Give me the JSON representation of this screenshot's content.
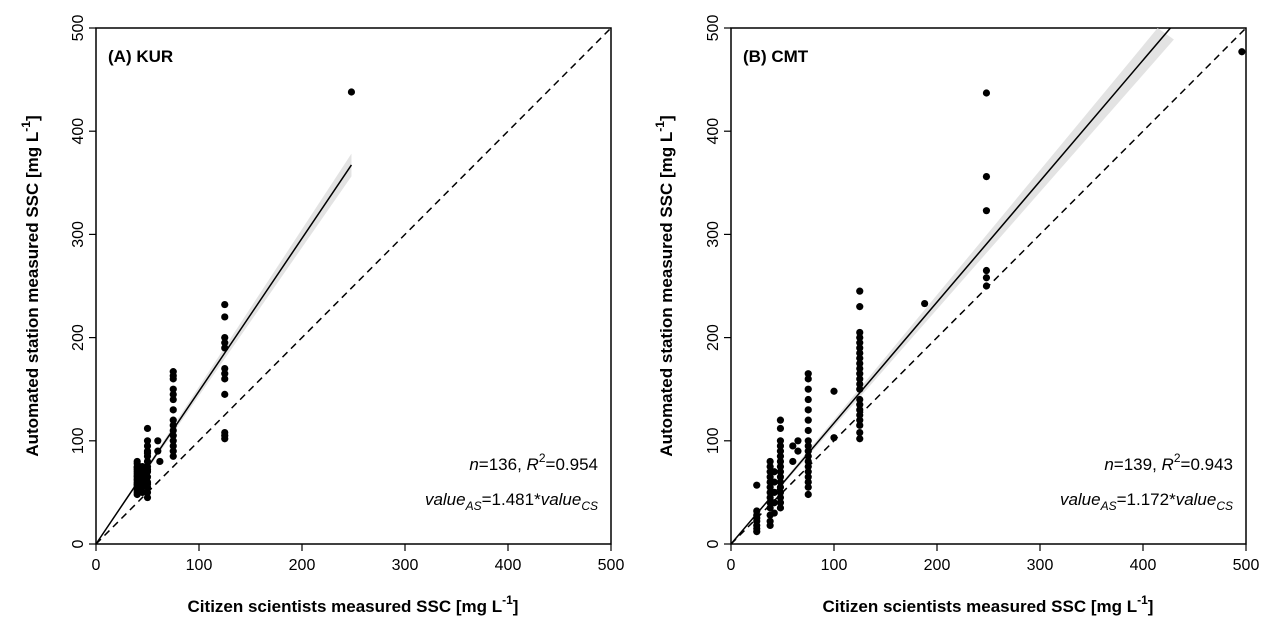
{
  "chart_data": [
    {
      "type": "scatter",
      "panel_label": "(A) KUR",
      "xlabel": "Citizen scientists measured SSC [mg L",
      "ylabel": "Automated station measured SSC [mg L",
      "unit_exponent": "-1",
      "xlim": [
        0,
        500
      ],
      "ylim": [
        0,
        500
      ],
      "xticks": [
        0,
        100,
        200,
        300,
        400,
        500
      ],
      "yticks": [
        0,
        100,
        200,
        300,
        400,
        500
      ],
      "stats": {
        "n_label": "n",
        "n_value": "=136, ",
        "r2_label": "R",
        "r2_sup": "2",
        "r2_value": "=0.954",
        "eq_lhs": "value",
        "eq_lhs_sub": "AS",
        "eq_mid": "=1.481*",
        "eq_rhs": "value",
        "eq_rhs_sub": "CS"
      },
      "fit_slope": 1.481,
      "fit_xmax": 248,
      "points": [
        [
          40,
          48
        ],
        [
          40,
          52
        ],
        [
          40,
          55
        ],
        [
          40,
          58
        ],
        [
          40,
          60
        ],
        [
          40,
          62
        ],
        [
          40,
          65
        ],
        [
          40,
          68
        ],
        [
          40,
          70
        ],
        [
          40,
          72
        ],
        [
          40,
          75
        ],
        [
          40,
          78
        ],
        [
          40,
          80
        ],
        [
          40,
          50
        ],
        [
          40,
          57
        ],
        [
          40,
          63
        ],
        [
          40,
          66
        ],
        [
          40,
          74
        ],
        [
          45,
          50
        ],
        [
          45,
          55
        ],
        [
          45,
          60
        ],
        [
          45,
          65
        ],
        [
          45,
          70
        ],
        [
          45,
          75
        ],
        [
          45,
          68
        ],
        [
          45,
          62
        ],
        [
          50,
          45
        ],
        [
          50,
          50
        ],
        [
          50,
          55
        ],
        [
          50,
          60
        ],
        [
          50,
          65
        ],
        [
          50,
          70
        ],
        [
          50,
          75
        ],
        [
          50,
          80
        ],
        [
          50,
          85
        ],
        [
          50,
          90
        ],
        [
          50,
          95
        ],
        [
          50,
          100
        ],
        [
          50,
          112
        ],
        [
          50,
          58
        ],
        [
          50,
          72
        ],
        [
          50,
          88
        ],
        [
          60,
          90
        ],
        [
          60,
          100
        ],
        [
          62,
          80
        ],
        [
          75,
          85
        ],
        [
          75,
          90
        ],
        [
          75,
          95
        ],
        [
          75,
          100
        ],
        [
          75,
          105
        ],
        [
          75,
          110
        ],
        [
          75,
          115
        ],
        [
          75,
          120
        ],
        [
          75,
          130
        ],
        [
          75,
          140
        ],
        [
          75,
          145
        ],
        [
          75,
          150
        ],
        [
          75,
          160
        ],
        [
          75,
          163
        ],
        [
          75,
          167
        ],
        [
          125,
          102
        ],
        [
          125,
          105
        ],
        [
          125,
          108
        ],
        [
          125,
          145
        ],
        [
          125,
          160
        ],
        [
          125,
          165
        ],
        [
          125,
          170
        ],
        [
          125,
          190
        ],
        [
          125,
          195
        ],
        [
          125,
          200
        ],
        [
          125,
          220
        ],
        [
          125,
          232
        ],
        [
          248,
          438
        ]
      ]
    },
    {
      "type": "scatter",
      "panel_label": "(B) CMT",
      "xlabel": "Citizen scientists measured SSC [mg L",
      "ylabel": "Automated station measured SSC [mg L",
      "unit_exponent": "-1",
      "xlim": [
        0,
        500
      ],
      "ylim": [
        0,
        500
      ],
      "xticks": [
        0,
        100,
        200,
        300,
        400,
        500
      ],
      "yticks": [
        0,
        100,
        200,
        300,
        400,
        500
      ],
      "stats": {
        "n_label": "n",
        "n_value": "=139, ",
        "r2_label": "R",
        "r2_sup": "2",
        "r2_value": "=0.943",
        "eq_lhs": "value",
        "eq_lhs_sub": "AS",
        "eq_mid": "=1.172*",
        "eq_rhs": "value",
        "eq_rhs_sub": "CS"
      },
      "fit_slope": 1.172,
      "fit_xmax": 430,
      "points": [
        [
          25,
          12
        ],
        [
          25,
          15
        ],
        [
          25,
          18
        ],
        [
          25,
          22
        ],
        [
          25,
          25
        ],
        [
          25,
          28
        ],
        [
          25,
          32
        ],
        [
          25,
          57
        ],
        [
          38,
          18
        ],
        [
          38,
          22
        ],
        [
          38,
          28
        ],
        [
          38,
          35
        ],
        [
          38,
          40
        ],
        [
          38,
          45
        ],
        [
          38,
          50
        ],
        [
          38,
          55
        ],
        [
          38,
          60
        ],
        [
          38,
          65
        ],
        [
          38,
          70
        ],
        [
          38,
          75
        ],
        [
          38,
          80
        ],
        [
          42,
          30
        ],
        [
          42,
          40
        ],
        [
          42,
          50
        ],
        [
          42,
          60
        ],
        [
          42,
          70
        ],
        [
          48,
          35
        ],
        [
          48,
          40
        ],
        [
          48,
          45
        ],
        [
          48,
          50
        ],
        [
          48,
          55
        ],
        [
          48,
          60
        ],
        [
          48,
          65
        ],
        [
          48,
          70
        ],
        [
          48,
          75
        ],
        [
          48,
          80
        ],
        [
          48,
          85
        ],
        [
          48,
          90
        ],
        [
          48,
          95
        ],
        [
          48,
          100
        ],
        [
          48,
          112
        ],
        [
          48,
          120
        ],
        [
          60,
          80
        ],
        [
          60,
          95
        ],
        [
          65,
          90
        ],
        [
          65,
          100
        ],
        [
          75,
          48
        ],
        [
          75,
          55
        ],
        [
          75,
          60
        ],
        [
          75,
          65
        ],
        [
          75,
          70
        ],
        [
          75,
          75
        ],
        [
          75,
          80
        ],
        [
          75,
          85
        ],
        [
          75,
          90
        ],
        [
          75,
          95
        ],
        [
          75,
          100
        ],
        [
          75,
          110
        ],
        [
          75,
          120
        ],
        [
          75,
          130
        ],
        [
          75,
          140
        ],
        [
          75,
          150
        ],
        [
          75,
          160
        ],
        [
          75,
          165
        ],
        [
          100,
          103
        ],
        [
          100,
          148
        ],
        [
          125,
          102
        ],
        [
          125,
          108
        ],
        [
          125,
          115
        ],
        [
          125,
          120
        ],
        [
          125,
          125
        ],
        [
          125,
          130
        ],
        [
          125,
          135
        ],
        [
          125,
          140
        ],
        [
          125,
          150
        ],
        [
          125,
          155
        ],
        [
          125,
          160
        ],
        [
          125,
          165
        ],
        [
          125,
          170
        ],
        [
          125,
          175
        ],
        [
          125,
          180
        ],
        [
          125,
          185
        ],
        [
          125,
          190
        ],
        [
          125,
          195
        ],
        [
          125,
          200
        ],
        [
          125,
          205
        ],
        [
          125,
          230
        ],
        [
          125,
          245
        ],
        [
          188,
          233
        ],
        [
          248,
          250
        ],
        [
          248,
          258
        ],
        [
          248,
          265
        ],
        [
          248,
          323
        ],
        [
          248,
          356
        ],
        [
          248,
          437
        ],
        [
          496,
          477
        ]
      ]
    }
  ]
}
